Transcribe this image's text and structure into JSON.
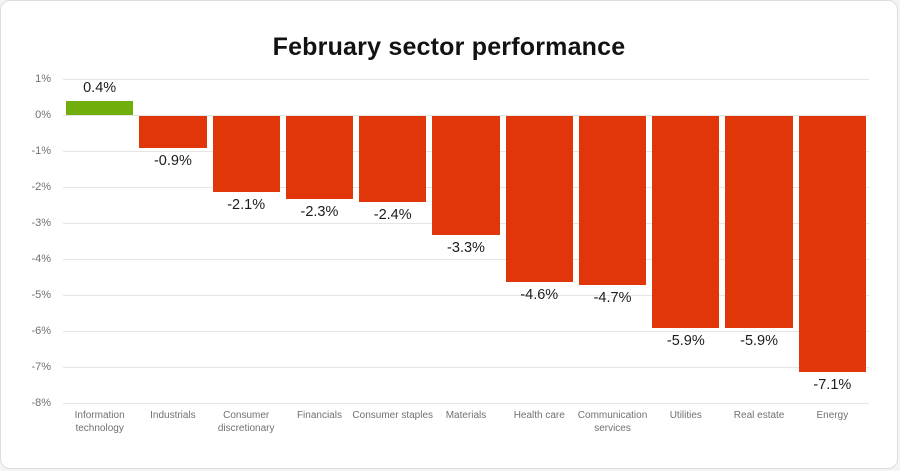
{
  "chart_data": {
    "type": "bar",
    "title": "February sector performance",
    "categories": [
      "Information technology",
      "Industrials",
      "Consumer discretionary",
      "Financials",
      "Consumer staples",
      "Materials",
      "Health care",
      "Communication services",
      "Utilities",
      "Real estate",
      "Energy"
    ],
    "values": [
      0.4,
      -0.9,
      -2.1,
      -2.3,
      -2.4,
      -3.3,
      -4.6,
      -4.7,
      -5.9,
      -5.9,
      -7.1
    ],
    "value_labels": [
      "0.4%",
      "-0.9%",
      "-2.1%",
      "-2.3%",
      "-2.4%",
      "-3.3%",
      "-4.6%",
      "-4.7%",
      "-5.9%",
      "-5.9%",
      "-7.1%"
    ],
    "y_ticks": [
      "1%",
      "0%",
      "-1%",
      "-2%",
      "-3%",
      "-4%",
      "-5%",
      "-6%",
      "-7%",
      "-8%"
    ],
    "ylim": [
      -8,
      1
    ],
    "xlabel": "",
    "ylabel": "",
    "grid": "horizontal",
    "legend": "none",
    "positive_color": "#6fae0b",
    "negative_color": "#e1350a",
    "gridline_color": "#e5e5e5"
  }
}
